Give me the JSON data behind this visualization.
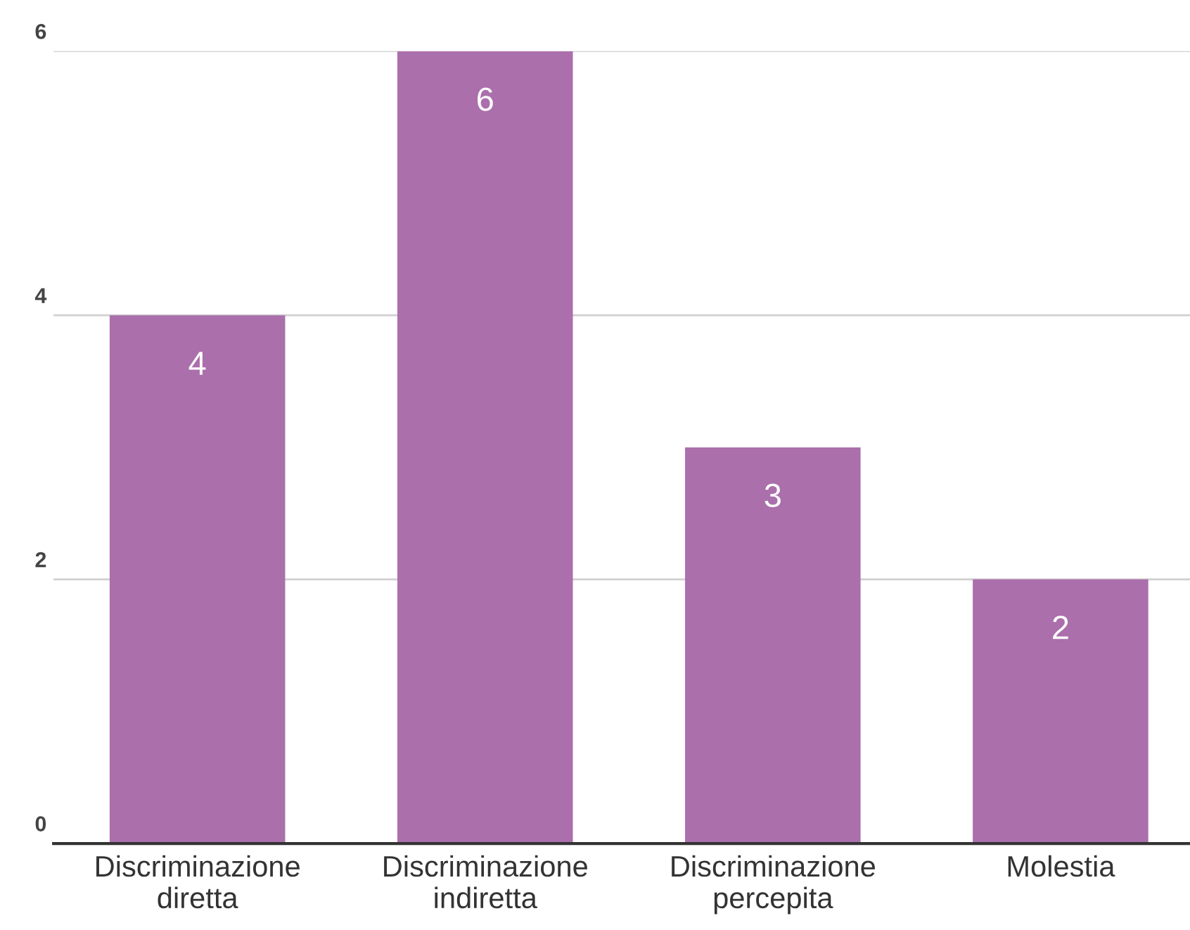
{
  "chart_data": {
    "type": "bar",
    "categories": [
      "Discriminazione\ndiretta",
      "Discriminazione\nindiretta",
      "Discriminazione\npercepita",
      "Molestia"
    ],
    "values": [
      4,
      6,
      3,
      2
    ],
    "color": "#ab6fac",
    "ylim": [
      0,
      6
    ],
    "yticks": [
      0,
      2,
      4,
      6
    ],
    "grid": "y",
    "data_labels": true
  }
}
